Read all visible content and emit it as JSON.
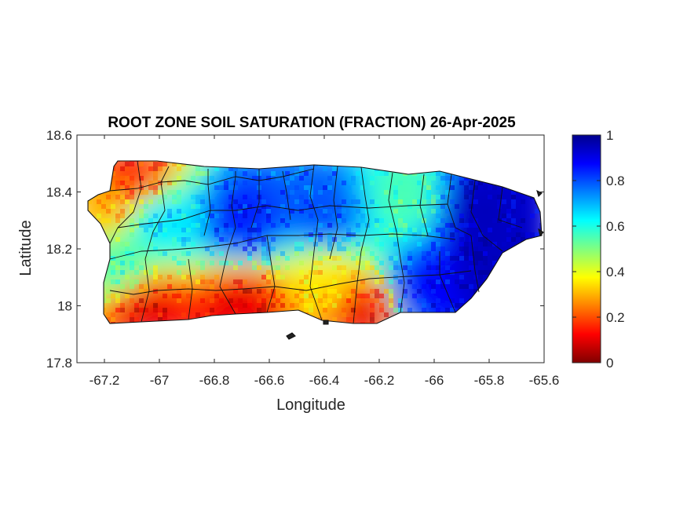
{
  "chart_data": {
    "type": "heatmap",
    "title": "ROOT ZONE SOIL SATURATION (FRACTION) 26-Apr-2025",
    "xlabel": "Longitude",
    "ylabel": "Latitude",
    "xlim": [
      -67.3,
      -65.6
    ],
    "ylim": [
      17.8,
      18.6
    ],
    "xticks": [
      "-67.2",
      "-67",
      "-66.8",
      "-66.6",
      "-66.4",
      "-66.2",
      "-66",
      "-65.8",
      "-65.6"
    ],
    "yticks": [
      "18.6",
      "18.4",
      "18.2",
      "18"
    ],
    "yticks_bottom": "17.8",
    "colorbar": {
      "min": 0,
      "max": 1,
      "ticks": [
        "1",
        "0.8",
        "0.6",
        "0.4",
        "0.2",
        "0"
      ],
      "colormap": "jet",
      "stops": [
        "#800000",
        "#ff0000",
        "#ff8000",
        "#ffff00",
        "#80ff80",
        "#00ffff",
        "#0080ff",
        "#0000ff",
        "#00008f"
      ]
    },
    "region": "Puerto Rico",
    "regional_values": [
      {
        "lon": -67.1,
        "lat": 18.46,
        "value": 0.15
      },
      {
        "lon": -67.2,
        "lat": 18.35,
        "value": 0.3
      },
      {
        "lon": -67.0,
        "lat": 18.3,
        "value": 0.65
      },
      {
        "lon": -66.7,
        "lat": 18.3,
        "value": 0.85
      },
      {
        "lon": -66.4,
        "lat": 18.32,
        "value": 0.8
      },
      {
        "lon": -66.1,
        "lat": 18.38,
        "value": 0.55
      },
      {
        "lon": -65.85,
        "lat": 18.33,
        "value": 0.95
      },
      {
        "lon": -65.8,
        "lat": 18.1,
        "value": 0.95
      },
      {
        "lon": -66.05,
        "lat": 18.05,
        "value": 0.88
      },
      {
        "lon": -66.4,
        "lat": 18.08,
        "value": 0.35
      },
      {
        "lon": -66.7,
        "lat": 18.0,
        "value": 0.1
      },
      {
        "lon": -67.05,
        "lat": 17.98,
        "value": 0.1
      },
      {
        "lon": -67.15,
        "lat": 18.15,
        "value": 0.55
      },
      {
        "lon": -66.25,
        "lat": 17.97,
        "value": 0.1
      }
    ]
  }
}
